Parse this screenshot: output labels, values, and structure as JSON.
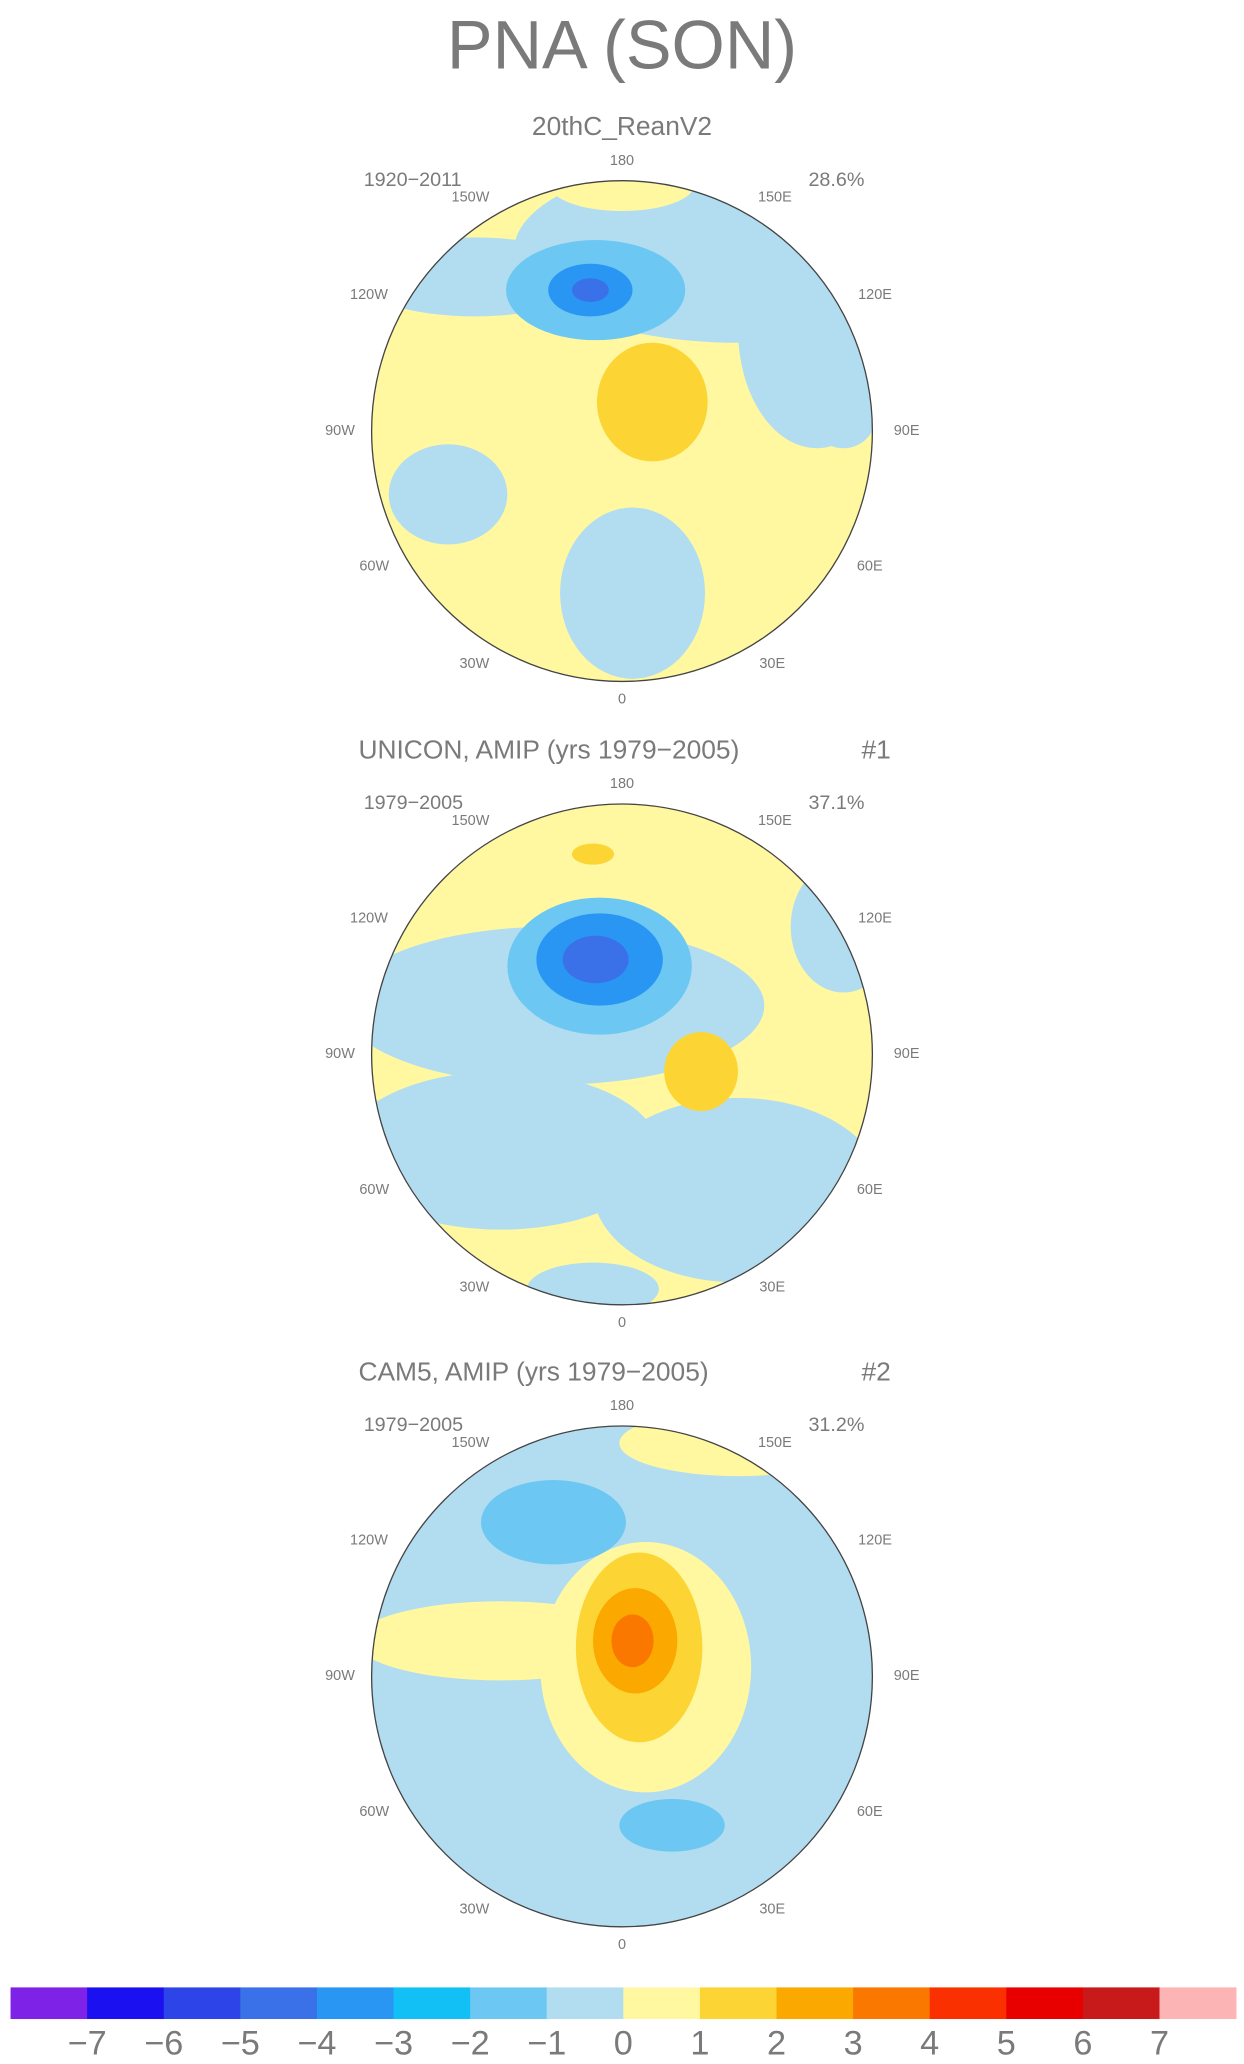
{
  "title": "PNA (SON)",
  "panels": [
    {
      "subtitle": "20thC_ReanV2",
      "period": "1920−2011",
      "variance": "28.6%"
    },
    {
      "subtitle": "UNICON, AMIP (yrs 1979−2005)",
      "tag": "#1",
      "period": "1979−2005",
      "variance": "37.1%"
    },
    {
      "subtitle": "CAM5, AMIP (yrs 1979−2005)",
      "tag": "#2",
      "period": "1979−2005",
      "variance": "31.2%"
    }
  ],
  "longitudes": [
    "180",
    "150W",
    "150E",
    "120W",
    "120E",
    "90W",
    "90E",
    "60W",
    "60E",
    "30W",
    "30E",
    "0"
  ],
  "colorbar": {
    "colors": [
      "#7f22e8",
      "#1a10f0",
      "#2d45e8",
      "#3a70e8",
      "#2a96f4",
      "#12c0f6",
      "#6cc8f2",
      "#b2ddf1",
      "#fff8a0",
      "#fcd535",
      "#fba800",
      "#fa7800",
      "#fa3000",
      "#e80000",
      "#c81a1a",
      "#fdb4b4"
    ],
    "labels": [
      "−7",
      "−6",
      "−5",
      "−4",
      "−3",
      "−2",
      "−1",
      "0",
      "1",
      "2",
      "3",
      "4",
      "5",
      "6",
      "7"
    ]
  }
}
